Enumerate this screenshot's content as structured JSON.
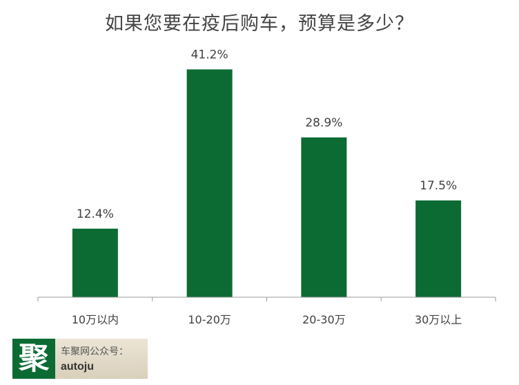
{
  "chart_data": {
    "type": "bar",
    "title": "如果您要在疫后购车，预算是多少？",
    "categories": [
      "10万以内",
      "10-20万",
      "20-30万",
      "30万以上"
    ],
    "values": [
      12.4,
      41.2,
      28.9,
      17.5
    ],
    "value_labels": [
      "12.4%",
      "41.2%",
      "28.9%",
      "17.5%"
    ],
    "xlabel": "",
    "ylabel": "",
    "ylim": [
      0,
      50
    ],
    "grid": false,
    "legend": "none",
    "bar_color": "#0c6b33",
    "axis_color": "#9a9a9a"
  },
  "watermark": {
    "logo_char": "聚",
    "account_label": "车聚网公众号：",
    "account_id": "autoju"
  }
}
